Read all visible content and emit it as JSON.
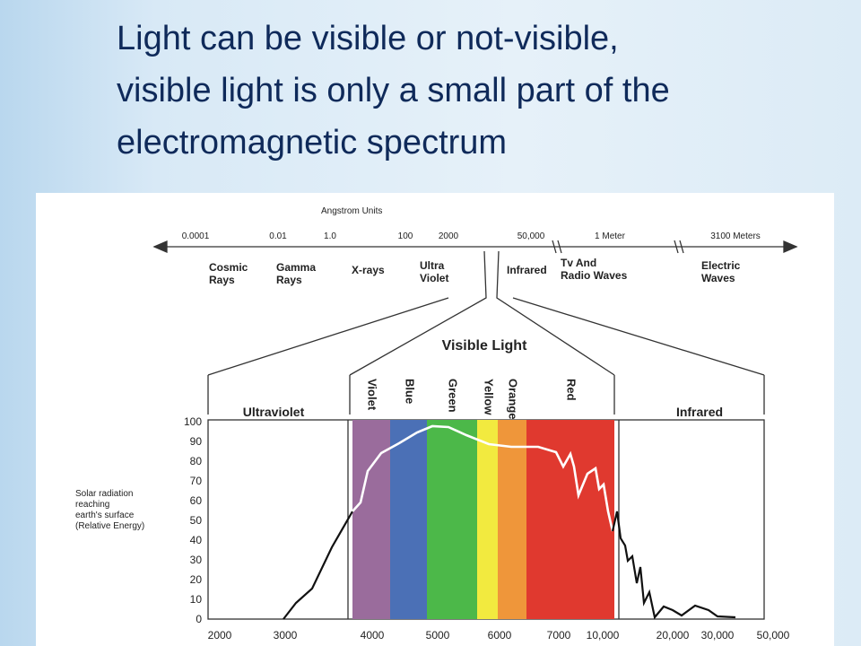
{
  "header": {
    "title": [
      "Light can be visible or not-visible,",
      "visible light is only a small part of the",
      "electromagnetic spectrum"
    ]
  },
  "diagram": {
    "scale_title": "Angstrom Units",
    "scale_labels": [
      "0.0001",
      "0.01",
      "1.0",
      "100",
      "2000",
      "50,000",
      "1 Meter",
      "3100 Meters"
    ],
    "regions": [
      [
        "Cosmic",
        "Rays"
      ],
      [
        "Gamma",
        "Rays"
      ],
      [
        "X-rays"
      ],
      [
        "Ultra",
        "Violet"
      ],
      [
        "Infrared"
      ],
      [
        "Tv And",
        "Radio Waves"
      ],
      [
        "Electric",
        "Waves"
      ]
    ],
    "visible_title": "Visible Light",
    "bands": [
      "Violet",
      "Blue",
      "Green",
      "Yellow",
      "Orange",
      "Red"
    ],
    "section_labels": [
      "Ultraviolet",
      "Infrared"
    ],
    "y_ticks": [
      "100",
      "90",
      "80",
      "70",
      "60",
      "50",
      "40",
      "30",
      "20",
      "10",
      "0"
    ],
    "y_label": [
      "Solar radiation",
      "reaching",
      "earth's surface",
      "(Relative Energy)"
    ],
    "x_labels": [
      "2000",
      "3000",
      "4000",
      "5000",
      "6000",
      "7000",
      "10,000",
      "20,000",
      "30,000",
      "50,000"
    ]
  }
}
